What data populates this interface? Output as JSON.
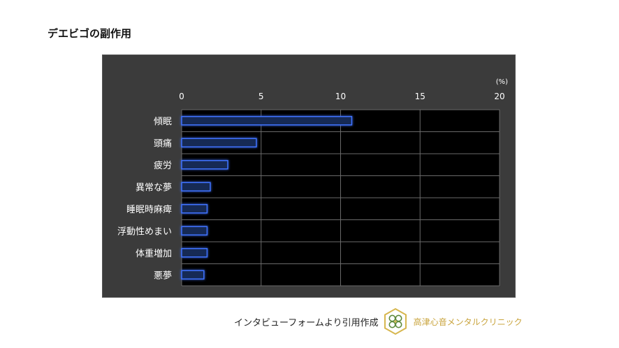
{
  "page": {
    "title": "デエビゴの副作用"
  },
  "footer": {
    "caption": "インタビューフォームより引用作成",
    "clinic_name": "高津心音メンタルクリニック",
    "logo_icon": "clover-leaf-icon"
  },
  "colors": {
    "panel_bg": "#3b3b3b",
    "plot_bg": "#000000",
    "grid": "#6a6a6a",
    "bar_fill": "#172a55",
    "bar_stroke": "#3f73ff",
    "label_text": "#ffffff",
    "logo_gold": "#d7b74f",
    "logo_green": "#5e8a3c"
  },
  "chart_data": {
    "type": "bar",
    "orientation": "horizontal",
    "title": "",
    "unit_label": "(%)",
    "xlabel": "",
    "ylabel": "",
    "xlim": [
      0,
      20
    ],
    "ticks": [
      0,
      5,
      10,
      15,
      20
    ],
    "tick_labels": [
      "0",
      "5",
      "10",
      "15",
      "20"
    ],
    "grid": true,
    "categories": [
      "傾眠",
      "頭痛",
      "疲労",
      "異常な夢",
      "睡眠時麻痺",
      "浮動性めまい",
      "体重増加",
      "悪夢"
    ],
    "values": [
      10.7,
      4.7,
      2.9,
      1.8,
      1.6,
      1.6,
      1.6,
      1.4
    ]
  }
}
